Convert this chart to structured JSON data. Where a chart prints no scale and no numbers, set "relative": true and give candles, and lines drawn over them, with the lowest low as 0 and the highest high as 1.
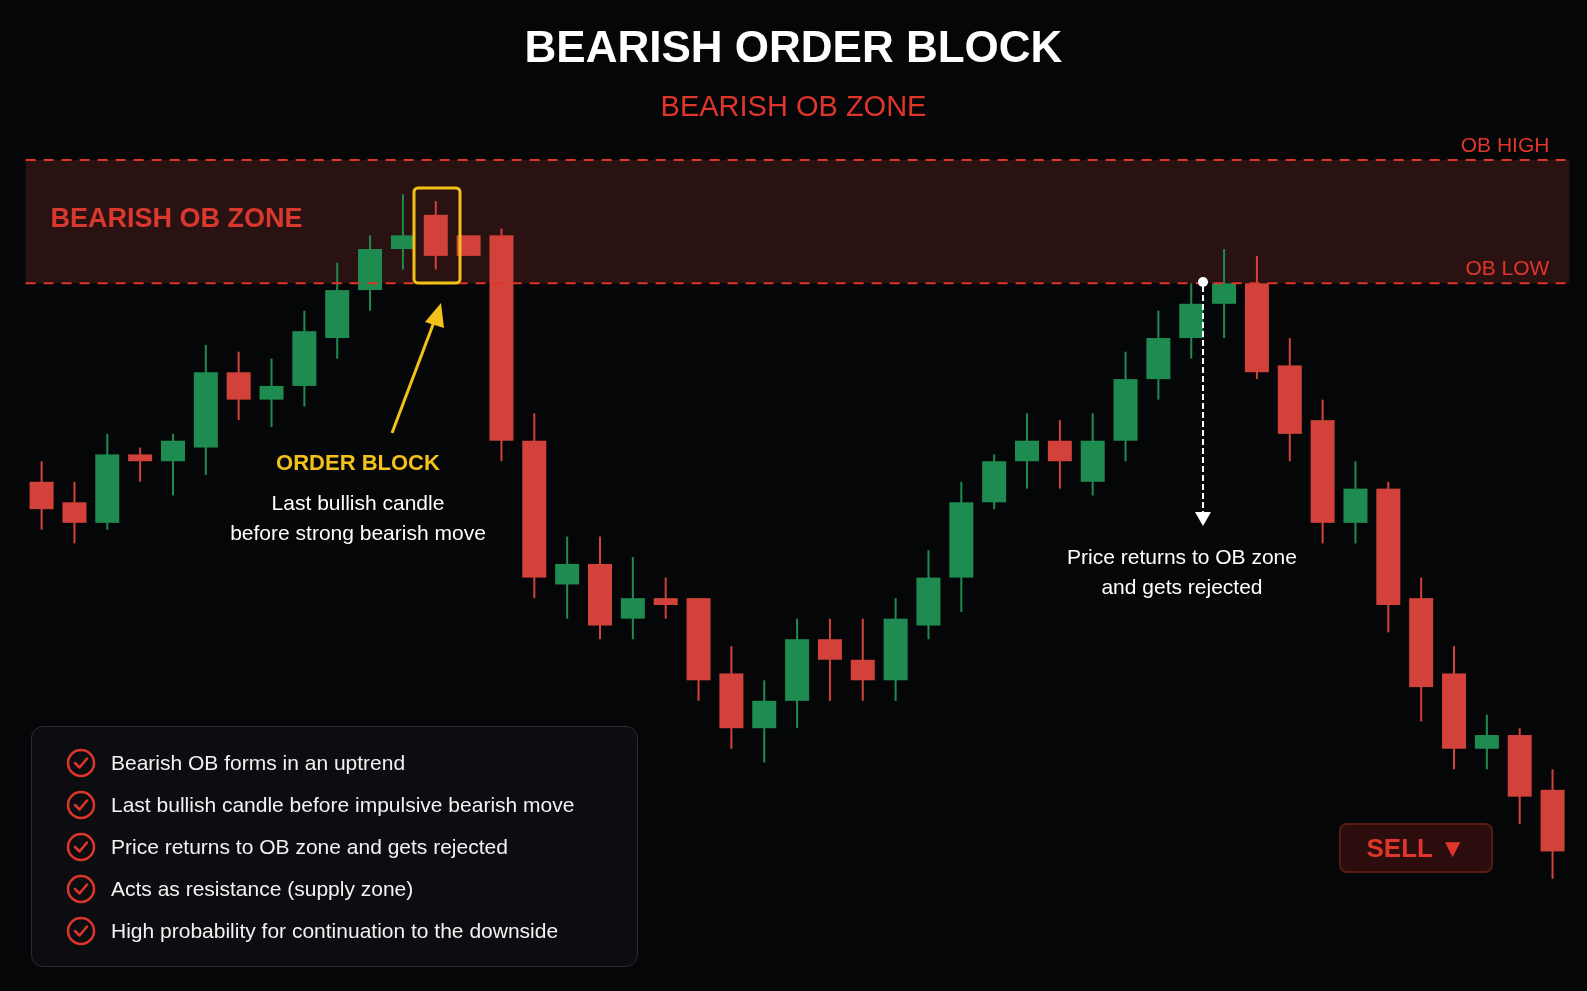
{
  "chart_data": {
    "type": "candlestick",
    "title": "BEARISH ORDER BLOCK",
    "subtitle": "BEARISH OB ZONE",
    "relative": true,
    "categories": [
      null,
      null,
      null,
      null,
      null,
      null,
      null,
      null,
      null,
      null,
      null,
      null,
      null,
      null,
      null,
      null,
      null,
      null,
      null,
      null,
      null,
      null,
      null,
      null,
      null,
      null,
      null,
      null,
      null,
      null,
      null,
      null,
      null,
      null,
      null,
      null,
      null,
      null,
      null,
      null,
      null,
      null,
      null,
      null,
      null,
      null,
      null
    ],
    "ohlc": [
      [
        0.58,
        0.61,
        0.51,
        0.54
      ],
      [
        0.55,
        0.58,
        0.49,
        0.52
      ],
      [
        0.52,
        0.65,
        0.51,
        0.62
      ],
      [
        0.62,
        0.63,
        0.58,
        0.61
      ],
      [
        0.61,
        0.65,
        0.56,
        0.64
      ],
      [
        0.63,
        0.78,
        0.59,
        0.74
      ],
      [
        0.74,
        0.77,
        0.67,
        0.7
      ],
      [
        0.7,
        0.76,
        0.66,
        0.72
      ],
      [
        0.72,
        0.83,
        0.69,
        0.8
      ],
      [
        0.79,
        0.9,
        0.76,
        0.86
      ],
      [
        0.86,
        0.94,
        0.83,
        0.92
      ],
      [
        0.92,
        1,
        0.89,
        0.94
      ],
      [
        0.97,
        0.99,
        0.89,
        0.91
      ],
      [
        0.94,
        0.94,
        0.91,
        0.91
      ],
      [
        0.94,
        0.95,
        0.61,
        0.64
      ],
      [
        0.64,
        0.68,
        0.41,
        0.44
      ],
      [
        0.43,
        0.5,
        0.38,
        0.46
      ],
      [
        0.46,
        0.5,
        0.35,
        0.37
      ],
      [
        0.38,
        0.47,
        0.35,
        0.41
      ],
      [
        0.41,
        0.44,
        0.38,
        0.4
      ],
      [
        0.41,
        0.41,
        0.26,
        0.29
      ],
      [
        0.3,
        0.34,
        0.19,
        0.22
      ],
      [
        0.22,
        0.29,
        0.17,
        0.26
      ],
      [
        0.26,
        0.38,
        0.22,
        0.35
      ],
      [
        0.35,
        0.38,
        0.26,
        0.32
      ],
      [
        0.32,
        0.38,
        0.26,
        0.29
      ],
      [
        0.29,
        0.41,
        0.26,
        0.38
      ],
      [
        0.37,
        0.48,
        0.35,
        0.44
      ],
      [
        0.44,
        0.58,
        0.39,
        0.55
      ],
      [
        0.55,
        0.62,
        0.54,
        0.61
      ],
      [
        0.61,
        0.68,
        0.57,
        0.64
      ],
      [
        0.64,
        0.67,
        0.57,
        0.61
      ],
      [
        0.58,
        0.68,
        0.56,
        0.64
      ],
      [
        0.64,
        0.77,
        0.61,
        0.73
      ],
      [
        0.73,
        0.83,
        0.7,
        0.79
      ],
      [
        0.79,
        0.87,
        0.76,
        0.84
      ],
      [
        0.84,
        0.92,
        0.79,
        0.87
      ],
      [
        0.87,
        0.91,
        0.73,
        0.74
      ],
      [
        0.75,
        0.79,
        0.61,
        0.65
      ],
      [
        0.67,
        0.7,
        0.49,
        0.52
      ],
      [
        0.52,
        0.61,
        0.49,
        0.57
      ],
      [
        0.57,
        0.58,
        0.36,
        0.4
      ],
      [
        0.41,
        0.44,
        0.23,
        0.28
      ],
      [
        0.3,
        0.34,
        0.16,
        0.19
      ],
      [
        0.19,
        0.24,
        0.16,
        0.21
      ],
      [
        0.21,
        0.22,
        0.08,
        0.12
      ],
      [
        0.13,
        0.16,
        0,
        0.04
      ]
    ],
    "colors": [
      "#d2413a",
      "#d2413a",
      "#1e8c50",
      "#d2413a",
      "#1e8c50",
      "#1e8c50",
      "#d2413a",
      "#1e8c50",
      "#1e8c50",
      "#1e8c50",
      "#1e8c50",
      "#1e8c50",
      "#d2413a",
      "#d2413a",
      "#d2413a",
      "#d2413a",
      "#1e8c50",
      "#d2413a",
      "#1e8c50",
      "#d2413a",
      "#d2413a",
      "#d2413a",
      "#1e8c50",
      "#1e8c50",
      "#d2413a",
      "#d2413a",
      "#1e8c50",
      "#1e8c50",
      "#1e8c50",
      "#1e8c50",
      "#1e8c50",
      "#d2413a",
      "#1e8c50",
      "#1e8c50",
      "#1e8c50",
      "#1e8c50",
      "#1e8c50",
      "#d2413a",
      "#d2413a",
      "#d2413a",
      "#1e8c50",
      "#d2413a",
      "#d2413a",
      "#d2413a",
      "#1e8c50",
      "#d2413a",
      "#d2413a"
    ],
    "bands": [
      {
        "axis": "y",
        "from": 0.87,
        "to": 1.05,
        "label": "BEARISH OB ZONE",
        "color": "#2b1212"
      }
    ],
    "ref_lines": [
      {
        "axis": "y",
        "value": 1.05,
        "label": "OB HIGH",
        "color": "#e0352b",
        "line_style": "dashed"
      },
      {
        "axis": "y",
        "value": 0.87,
        "label": "OB LOW",
        "color": "#e0352b",
        "line_style": "dashed"
      }
    ],
    "annotations": [
      "ORDER BLOCK",
      "Last bullish candle\nbefore strong bearish move",
      "Price returns to OB zone\nand gets rejected",
      "Bearish OB forms in an uptrend",
      "Last bullish candle before impulsive bearish move",
      "Price returns to OB zone and gets rejected",
      "Acts as resistance (supply zone)",
      "High probability for continuation to the downside",
      "SELL ▼"
    ]
  }
}
